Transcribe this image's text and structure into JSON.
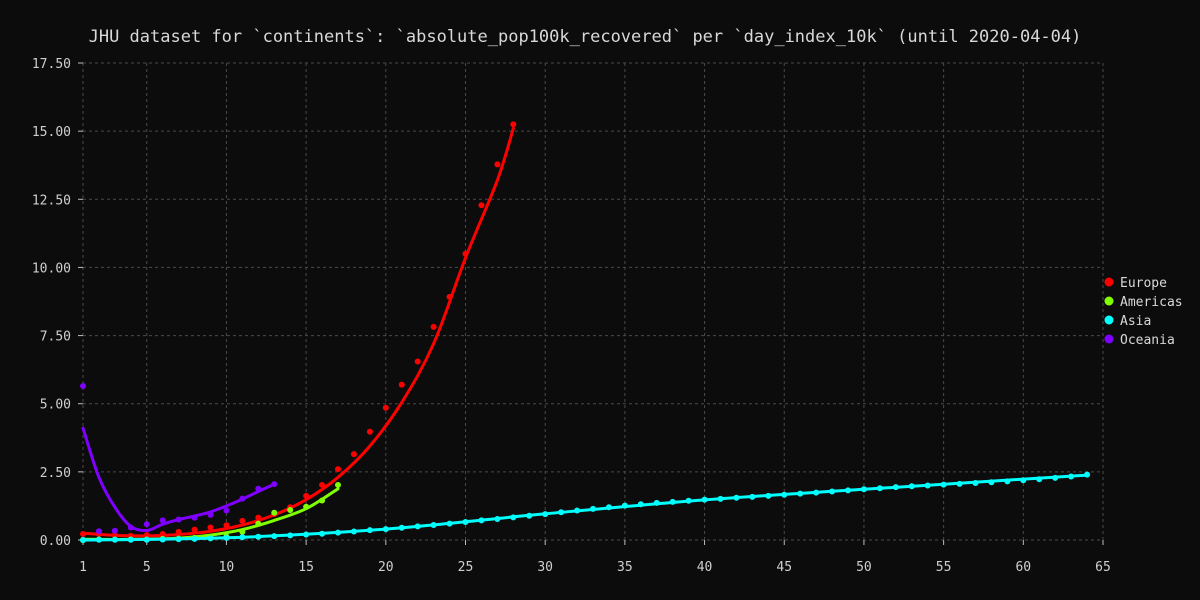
{
  "chart_data": {
    "type": "scatter",
    "title": "JHU dataset for `continents`: `absolute_pop100k_recovered` per `day_index_10k` (until 2020-04-04)",
    "xlabel": "",
    "ylabel": "",
    "xlim": [
      1,
      65
    ],
    "ylim": [
      0,
      17.5
    ],
    "x_ticks": [
      1,
      5,
      10,
      15,
      20,
      25,
      30,
      35,
      40,
      45,
      50,
      55,
      60,
      65
    ],
    "y_ticks": [
      0,
      2.5,
      5,
      7.5,
      10,
      12.5,
      15,
      17.5
    ],
    "y_tick_labels": [
      "0.00",
      "2.50",
      "5.00",
      "7.50",
      "10.00",
      "12.50",
      "15.00",
      "17.50"
    ],
    "grid": true,
    "legend_position": "right",
    "series": [
      {
        "name": "Europe",
        "color": "#ff0000",
        "points": [
          [
            1,
            0.22
          ],
          [
            2,
            0.22
          ],
          [
            3,
            0.18
          ],
          [
            4,
            0.15
          ],
          [
            5,
            0.18
          ],
          [
            6,
            0.22
          ],
          [
            7,
            0.3
          ],
          [
            8,
            0.38
          ],
          [
            9,
            0.46
          ],
          [
            10,
            0.54
          ],
          [
            11,
            0.7
          ],
          [
            12,
            0.82
          ],
          [
            13,
            0.95
          ],
          [
            14,
            1.2
          ],
          [
            15,
            1.62
          ],
          [
            16,
            2.02
          ],
          [
            17,
            2.6
          ],
          [
            18,
            3.15
          ],
          [
            19,
            3.97
          ],
          [
            20,
            4.85
          ],
          [
            21,
            5.7
          ],
          [
            22,
            6.55
          ],
          [
            23,
            7.82
          ],
          [
            24,
            8.92
          ],
          [
            25,
            10.5
          ],
          [
            26,
            12.28
          ],
          [
            27,
            13.78
          ],
          [
            28,
            15.25
          ]
        ],
        "fit": [
          [
            1,
            0.25
          ],
          [
            3,
            0.17
          ],
          [
            5,
            0.15
          ],
          [
            7,
            0.2
          ],
          [
            9,
            0.32
          ],
          [
            11,
            0.55
          ],
          [
            13,
            0.92
          ],
          [
            15,
            1.48
          ],
          [
            17,
            2.3
          ],
          [
            19,
            3.45
          ],
          [
            21,
            5.05
          ],
          [
            23,
            7.2
          ],
          [
            25,
            10.35
          ],
          [
            27,
            13.2
          ],
          [
            28,
            15.1
          ]
        ]
      },
      {
        "name": "Americas",
        "color": "#80ff00",
        "points": [
          [
            1,
            0.0
          ],
          [
            2,
            0.02
          ],
          [
            3,
            0.02
          ],
          [
            4,
            0.02
          ],
          [
            5,
            0.02
          ],
          [
            6,
            0.04
          ],
          [
            7,
            0.05
          ],
          [
            8,
            0.08
          ],
          [
            9,
            0.08
          ],
          [
            10,
            0.13
          ],
          [
            11,
            0.3
          ],
          [
            12,
            0.6
          ],
          [
            13,
            1.0
          ],
          [
            14,
            1.1
          ],
          [
            15,
            1.22
          ],
          [
            16,
            1.45
          ],
          [
            17,
            2.02
          ]
        ],
        "fit": [
          [
            1,
            0.03
          ],
          [
            3,
            0.02
          ],
          [
            5,
            0.03
          ],
          [
            7,
            0.07
          ],
          [
            9,
            0.18
          ],
          [
            11,
            0.38
          ],
          [
            13,
            0.72
          ],
          [
            15,
            1.15
          ],
          [
            17,
            1.88
          ]
        ]
      },
      {
        "name": "Asia",
        "color": "#00ffff",
        "points": [
          [
            1,
            0.0
          ],
          [
            2,
            0.01
          ],
          [
            3,
            0.01
          ],
          [
            4,
            0.01
          ],
          [
            5,
            0.01
          ],
          [
            6,
            0.02
          ],
          [
            7,
            0.03
          ],
          [
            8,
            0.04
          ],
          [
            9,
            0.06
          ],
          [
            10,
            0.08
          ],
          [
            11,
            0.1
          ],
          [
            12,
            0.12
          ],
          [
            13,
            0.14
          ],
          [
            14,
            0.17
          ],
          [
            15,
            0.2
          ],
          [
            16,
            0.23
          ],
          [
            17,
            0.27
          ],
          [
            18,
            0.31
          ],
          [
            19,
            0.36
          ],
          [
            20,
            0.4
          ],
          [
            21,
            0.45
          ],
          [
            22,
            0.5
          ],
          [
            23,
            0.55
          ],
          [
            24,
            0.6
          ],
          [
            25,
            0.66
          ],
          [
            26,
            0.72
          ],
          [
            27,
            0.77
          ],
          [
            28,
            0.83
          ],
          [
            29,
            0.89
          ],
          [
            30,
            0.95
          ],
          [
            31,
            1.02
          ],
          [
            32,
            1.08
          ],
          [
            33,
            1.14
          ],
          [
            34,
            1.2
          ],
          [
            35,
            1.26
          ],
          [
            36,
            1.31
          ],
          [
            37,
            1.36
          ],
          [
            38,
            1.4
          ],
          [
            39,
            1.44
          ],
          [
            40,
            1.48
          ],
          [
            41,
            1.51
          ],
          [
            42,
            1.55
          ],
          [
            43,
            1.58
          ],
          [
            44,
            1.62
          ],
          [
            45,
            1.66
          ],
          [
            46,
            1.7
          ],
          [
            47,
            1.74
          ],
          [
            48,
            1.78
          ],
          [
            49,
            1.82
          ],
          [
            50,
            1.86
          ],
          [
            51,
            1.9
          ],
          [
            52,
            1.94
          ],
          [
            53,
            1.97
          ],
          [
            54,
            2.0
          ],
          [
            55,
            2.03
          ],
          [
            56,
            2.06
          ],
          [
            57,
            2.09
          ],
          [
            58,
            2.12
          ],
          [
            59,
            2.15
          ],
          [
            60,
            2.19
          ],
          [
            61,
            2.23
          ],
          [
            62,
            2.28
          ],
          [
            63,
            2.33
          ],
          [
            64,
            2.4
          ]
        ],
        "fit": [
          [
            1,
            0.0
          ],
          [
            10,
            0.08
          ],
          [
            20,
            0.4
          ],
          [
            30,
            0.96
          ],
          [
            40,
            1.47
          ],
          [
            50,
            1.86
          ],
          [
            64,
            2.38
          ]
        ]
      },
      {
        "name": "Oceania",
        "color": "#8000ff",
        "points": [
          [
            1,
            5.65
          ],
          [
            2,
            0.32
          ],
          [
            3,
            0.34
          ],
          [
            4,
            0.46
          ],
          [
            5,
            0.58
          ],
          [
            6,
            0.72
          ],
          [
            7,
            0.75
          ],
          [
            8,
            0.82
          ],
          [
            9,
            0.92
          ],
          [
            10,
            1.08
          ],
          [
            11,
            1.52
          ],
          [
            12,
            1.88
          ],
          [
            13,
            2.05
          ]
        ],
        "fit": [
          [
            1,
            4.1
          ],
          [
            2,
            2.3
          ],
          [
            3,
            1.2
          ],
          [
            4,
            0.5
          ],
          [
            5,
            0.35
          ],
          [
            6,
            0.58
          ],
          [
            7,
            0.75
          ],
          [
            8,
            0.88
          ],
          [
            9,
            1.03
          ],
          [
            10,
            1.25
          ],
          [
            11,
            1.5
          ],
          [
            12,
            1.78
          ],
          [
            13,
            2.05
          ]
        ]
      }
    ]
  }
}
